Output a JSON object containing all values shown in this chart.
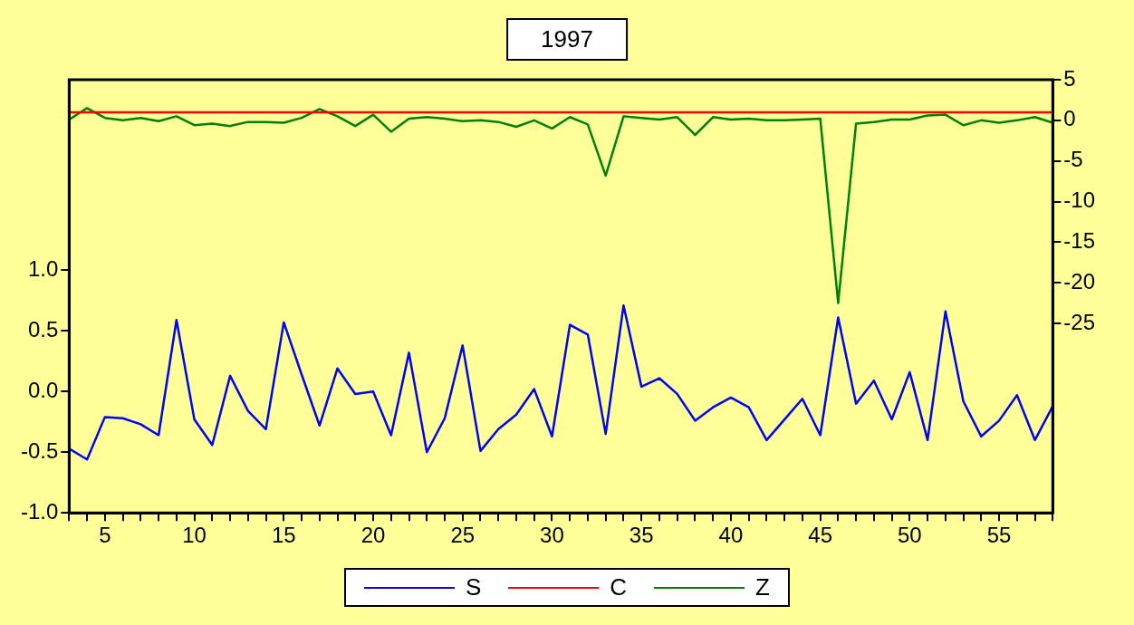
{
  "chart_data": {
    "type": "line",
    "title": "1997",
    "x": [
      3,
      4,
      5,
      6,
      7,
      8,
      9,
      10,
      11,
      12,
      13,
      14,
      15,
      16,
      17,
      18,
      19,
      20,
      21,
      22,
      23,
      24,
      25,
      26,
      27,
      28,
      29,
      30,
      31,
      32,
      33,
      34,
      35,
      36,
      37,
      38,
      39,
      40,
      41,
      42,
      43,
      44,
      45,
      46,
      47,
      48,
      49,
      50,
      51,
      52,
      53,
      54,
      55,
      56,
      57,
      58
    ],
    "series": [
      {
        "name": "S",
        "color": "#0000ff",
        "values": [
          -0.47,
          -0.56,
          -0.21,
          -0.22,
          -0.27,
          -0.36,
          0.59,
          -0.23,
          -0.44,
          0.13,
          -0.16,
          -0.31,
          0.57,
          0.14,
          -0.28,
          0.19,
          -0.02,
          0.0,
          -0.36,
          0.32,
          -0.5,
          -0.22,
          0.38,
          -0.49,
          -0.31,
          -0.19,
          0.02,
          -0.37,
          0.55,
          0.47,
          -0.35,
          0.71,
          0.04,
          0.11,
          -0.02,
          -0.24,
          -0.13,
          -0.05,
          -0.13,
          -0.4,
          -0.23,
          -0.06,
          -0.36,
          0.61,
          -0.1,
          0.09,
          -0.23,
          0.16,
          -0.4,
          0.66,
          -0.08,
          -0.37,
          -0.24,
          -0.03,
          -0.4,
          -0.12
        ]
      },
      {
        "name": "C",
        "color": "#ff0000",
        "axis": "y2",
        "values": [
          1,
          1,
          1,
          1,
          1,
          1,
          1,
          1,
          1,
          1,
          1,
          1,
          1,
          1,
          1,
          1,
          1,
          1,
          1,
          1,
          1,
          1,
          1,
          1,
          1,
          1,
          1,
          1,
          1,
          1,
          1,
          1,
          1,
          1,
          1,
          1,
          1,
          1,
          1,
          1,
          1,
          1,
          1,
          1,
          1,
          1,
          1,
          1,
          1,
          1,
          1,
          1,
          1,
          1,
          1,
          1
        ]
      },
      {
        "name": "Z",
        "color": "#008000",
        "axis": "y2",
        "values": [
          0.1,
          1.5,
          0.3,
          0.0,
          0.3,
          -0.1,
          0.5,
          -0.6,
          -0.4,
          -0.7,
          -0.2,
          -0.2,
          -0.3,
          0.3,
          1.4,
          0.5,
          -0.7,
          0.7,
          -1.4,
          0.2,
          0.4,
          0.2,
          -0.1,
          0.0,
          -0.2,
          -0.8,
          0.0,
          -1.0,
          0.4,
          -0.5,
          -6.8,
          0.5,
          0.3,
          0.1,
          0.4,
          -1.8,
          0.4,
          0.1,
          0.2,
          0.0,
          0.0,
          0.1,
          0.2,
          -22.5,
          -0.4,
          -0.2,
          0.1,
          0.1,
          0.6,
          0.7,
          -0.6,
          0.0,
          -0.3,
          0.0,
          0.4,
          -0.3
        ]
      }
    ],
    "xlim": [
      3,
      58
    ],
    "xticks": [
      {
        "value": 3,
        "label": null
      },
      {
        "value": 4,
        "label": null
      },
      5,
      {
        "value": 6,
        "label": null
      },
      {
        "value": 7,
        "label": null
      },
      {
        "value": 8,
        "label": null
      },
      {
        "value": 9,
        "label": null
      },
      10,
      {
        "value": 11,
        "label": null
      },
      {
        "value": 12,
        "label": null
      },
      {
        "value": 13,
        "label": null
      },
      {
        "value": 14,
        "label": null
      },
      15,
      {
        "value": 16,
        "label": null
      },
      {
        "value": 17,
        "label": null
      },
      {
        "value": 18,
        "label": null
      },
      {
        "value": 19,
        "label": null
      },
      20,
      {
        "value": 21,
        "label": null
      },
      {
        "value": 22,
        "label": null
      },
      {
        "value": 23,
        "label": null
      },
      {
        "value": 24,
        "label": null
      },
      25,
      {
        "value": 26,
        "label": null
      },
      {
        "value": 27,
        "label": null
      },
      {
        "value": 28,
        "label": null
      },
      {
        "value": 29,
        "label": null
      },
      30,
      {
        "value": 31,
        "label": null
      },
      {
        "value": 32,
        "label": null
      },
      {
        "value": 33,
        "label": null
      },
      {
        "value": 34,
        "label": null
      },
      35,
      {
        "value": 36,
        "label": null
      },
      {
        "value": 37,
        "label": null
      },
      {
        "value": 38,
        "label": null
      },
      {
        "value": 39,
        "label": null
      },
      40,
      {
        "value": 41,
        "label": null
      },
      {
        "value": 42,
        "label": null
      },
      {
        "value": 43,
        "label": null
      },
      {
        "value": 44,
        "label": null
      },
      45,
      {
        "value": 46,
        "label": null
      },
      {
        "value": 47,
        "label": null
      },
      {
        "value": 48,
        "label": null
      },
      {
        "value": 49,
        "label": null
      },
      50,
      {
        "value": 51,
        "label": null
      },
      {
        "value": 52,
        "label": null
      },
      {
        "value": 53,
        "label": null
      },
      {
        "value": 54,
        "label": null
      },
      55,
      {
        "value": 56,
        "label": null
      },
      {
        "value": 57,
        "label": null
      },
      {
        "value": 58,
        "label": null
      }
    ],
    "ylim": [
      -1.0,
      2.57
    ],
    "yticks": [
      {
        "value": -1.0,
        "label": "-1.0"
      },
      {
        "value": -0.5,
        "label": "-0.5"
      },
      {
        "value": 0.0,
        "label": "0.0"
      },
      {
        "value": 0.5,
        "label": "0.5"
      },
      {
        "value": 1.0,
        "label": "1.0"
      }
    ],
    "y2lim": [
      -48.3,
      5
    ],
    "y2ticks": [
      5,
      0,
      -5,
      -10,
      -15,
      -20,
      -25
    ],
    "grid": false,
    "legend": "bottom",
    "marker": "none",
    "line_style": "solid"
  }
}
